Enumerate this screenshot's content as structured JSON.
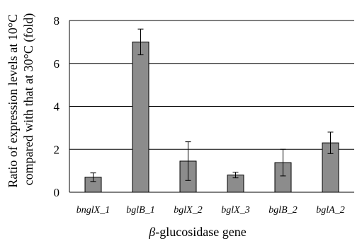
{
  "chart_data": {
    "type": "bar",
    "title": "",
    "ylabel_lines": [
      "Ratio of expression levels at 10°C",
      "compared with that at 30°C (fold)"
    ],
    "xlabel": {
      "italic_part": "β",
      "rest": "-glucosidase gene"
    },
    "categories": [
      "bnglX_1",
      "bglB_1",
      "bglX_2",
      "bglX_3",
      "bglB_2",
      "bglA_2"
    ],
    "values": [
      0.7,
      7.0,
      1.45,
      0.8,
      1.38,
      2.3
    ],
    "error": [
      0.2,
      0.6,
      0.9,
      0.13,
      0.62,
      0.5
    ],
    "ylim": [
      0,
      8
    ],
    "yticks": [
      0,
      2,
      4,
      6,
      8
    ],
    "grid": true,
    "legend": "none",
    "bar_color": "#8c8c8c"
  }
}
